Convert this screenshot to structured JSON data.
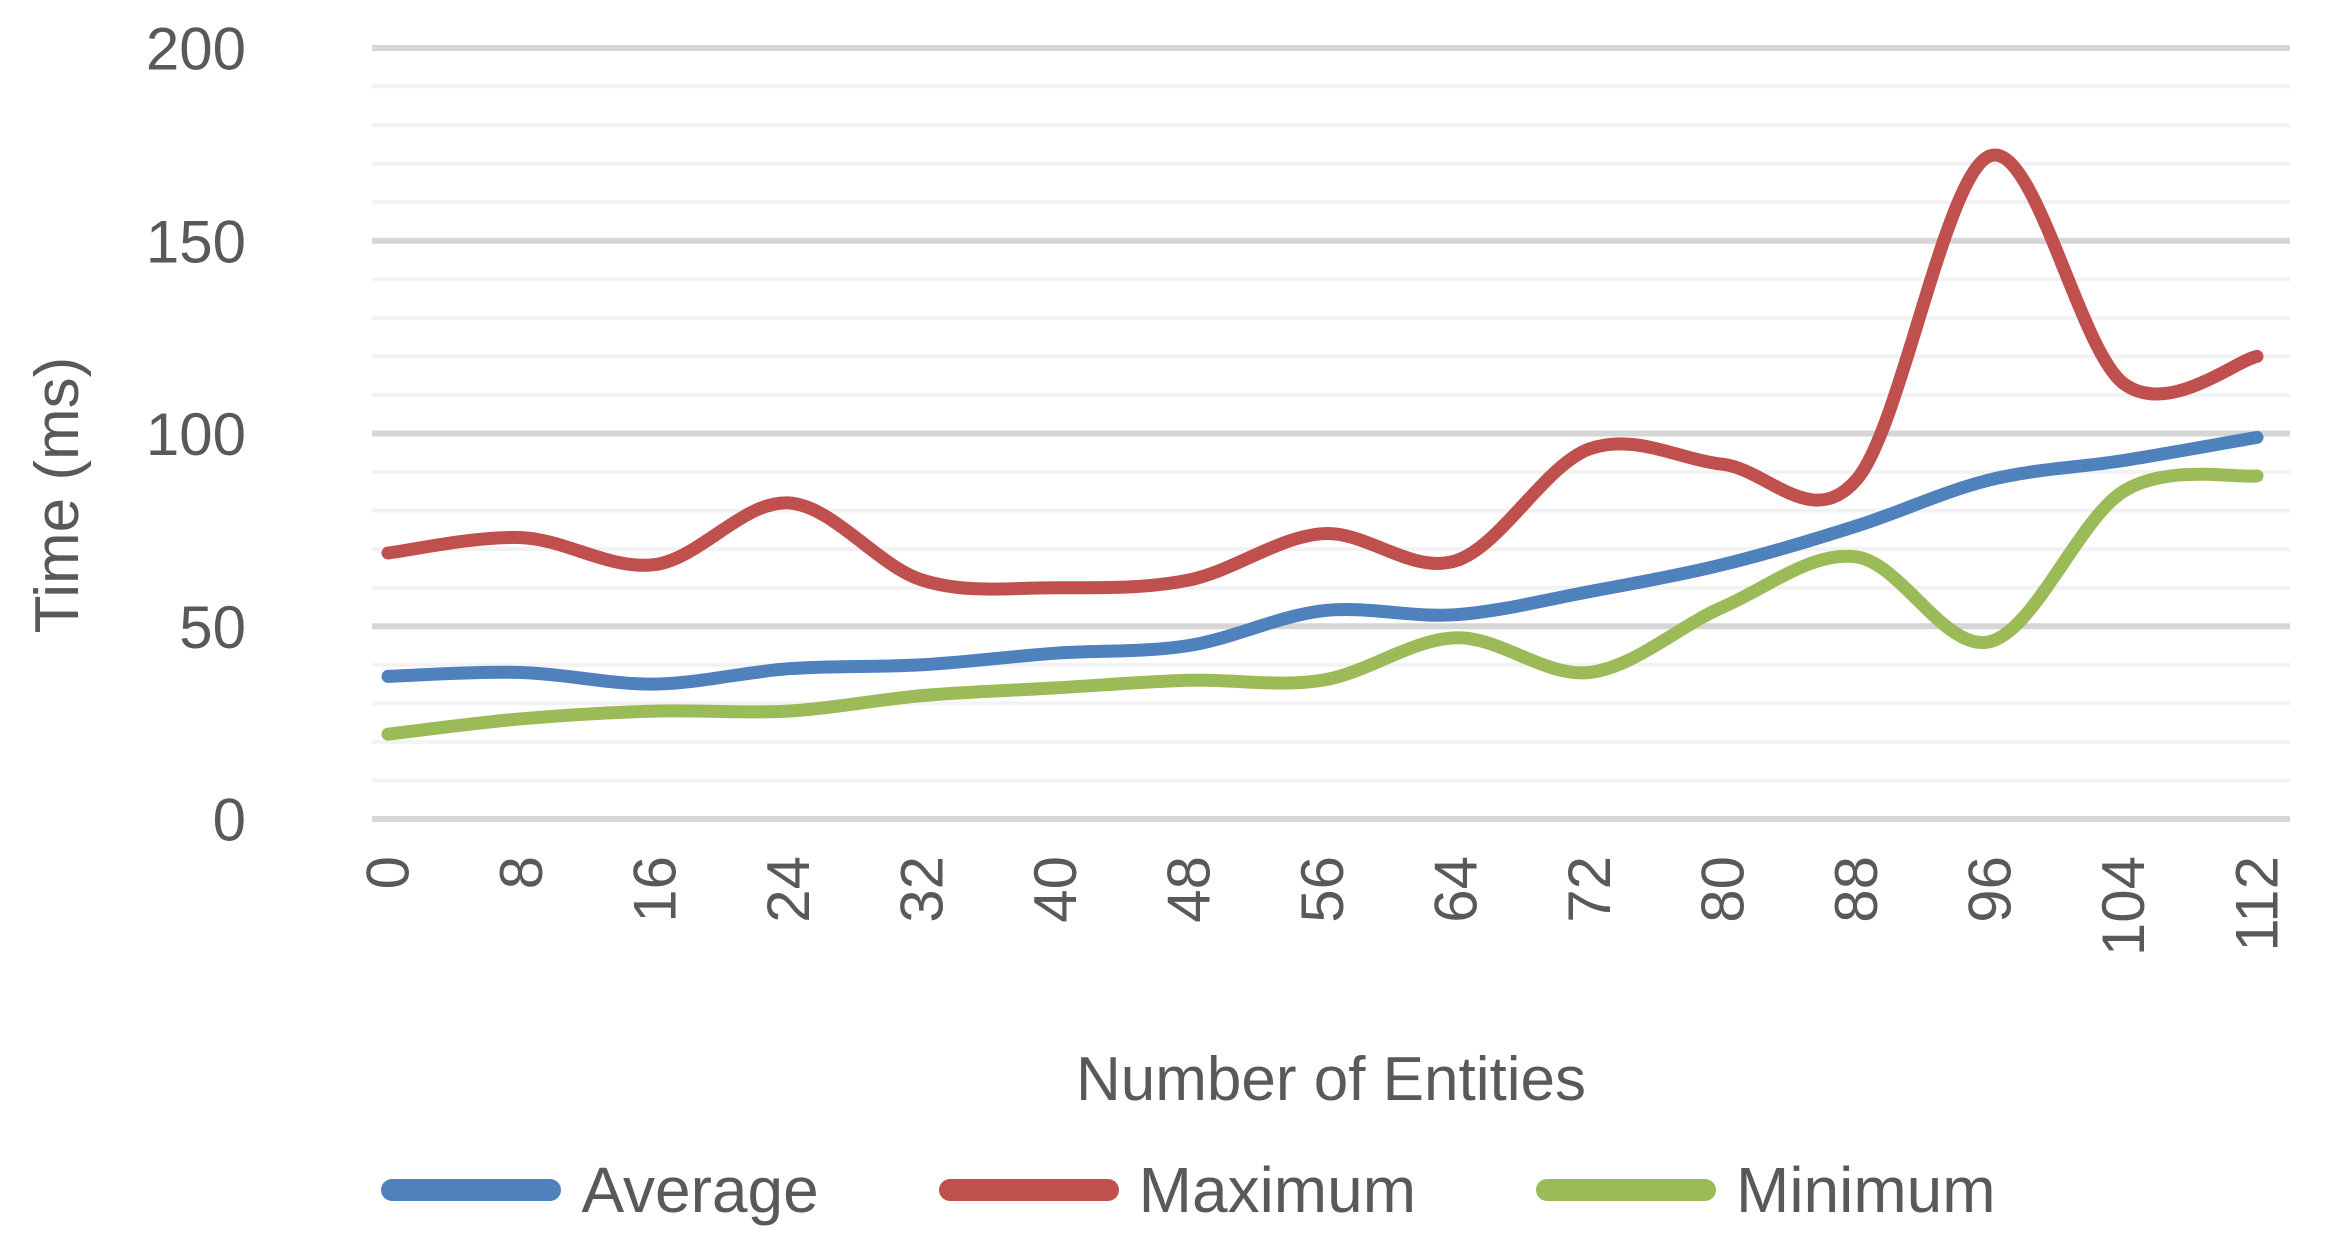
{
  "chart_data": {
    "type": "line",
    "smoothed": true,
    "title": "",
    "xlabel": "Number of Entities",
    "ylabel": "Time (ms)",
    "categories": [
      0,
      8,
      16,
      24,
      32,
      40,
      48,
      56,
      64,
      72,
      80,
      88,
      96,
      104,
      112
    ],
    "series": [
      {
        "name": "Average",
        "color": "#4F81BD",
        "values": [
          37,
          38,
          35,
          39,
          40,
          43,
          45,
          54,
          53,
          59,
          66,
          76,
          88,
          93,
          99
        ]
      },
      {
        "name": "Maximum",
        "color": "#C0504D",
        "values": [
          69,
          73,
          66,
          82,
          62,
          60,
          62,
          74,
          67,
          96,
          92,
          88,
          172,
          113,
          120
        ]
      },
      {
        "name": "Minimum",
        "color": "#9BBB59",
        "values": [
          22,
          26,
          28,
          28,
          32,
          34,
          36,
          36,
          47,
          38,
          55,
          68,
          46,
          85,
          89
        ]
      }
    ],
    "ylim": [
      0,
      200
    ],
    "y_major_ticks": [
      0,
      50,
      100,
      150,
      200
    ],
    "y_minor_step": 10,
    "grid": {
      "major_color": "#D6D6D6",
      "minor_color": "#F2F2F2",
      "major_on": true,
      "minor_on": true
    },
    "legend_position": "bottom",
    "text_color": "#595959",
    "line_width": 13
  }
}
